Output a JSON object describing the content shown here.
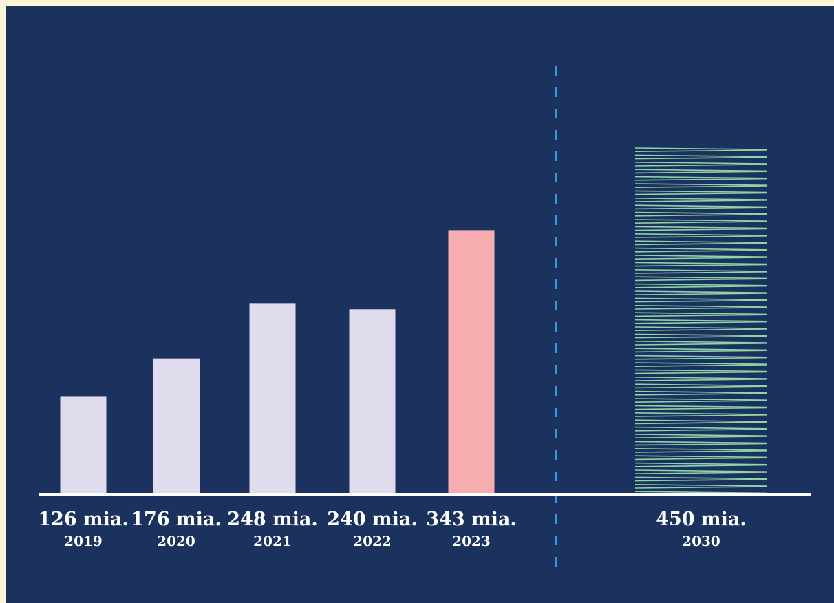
{
  "chart_data": {
    "type": "bar",
    "categories": [
      "2019",
      "2020",
      "2021",
      "2022",
      "2023",
      "2030"
    ],
    "values": [
      126,
      176,
      248,
      240,
      343,
      450
    ],
    "value_labels": [
      "126 mia.",
      "176 mia.",
      "248 mia.",
      "240 mia.",
      "343 mia.",
      "450 mia."
    ],
    "ylim": [
      0,
      450
    ],
    "grid": false,
    "legend": "none",
    "projection_from_category": "2030",
    "colors": {
      "background": "#1b325e",
      "border": "#fdf3d6",
      "bar_default": "#e0dcee",
      "bar_highlight": "#f5adb0",
      "bar_projection": "#8fd3a8",
      "divider": "#2f9ce0",
      "baseline": "#ffffff",
      "text": "#ffffff"
    },
    "bar_styles": [
      "default",
      "default",
      "default",
      "default",
      "highlight",
      "projection"
    ]
  }
}
